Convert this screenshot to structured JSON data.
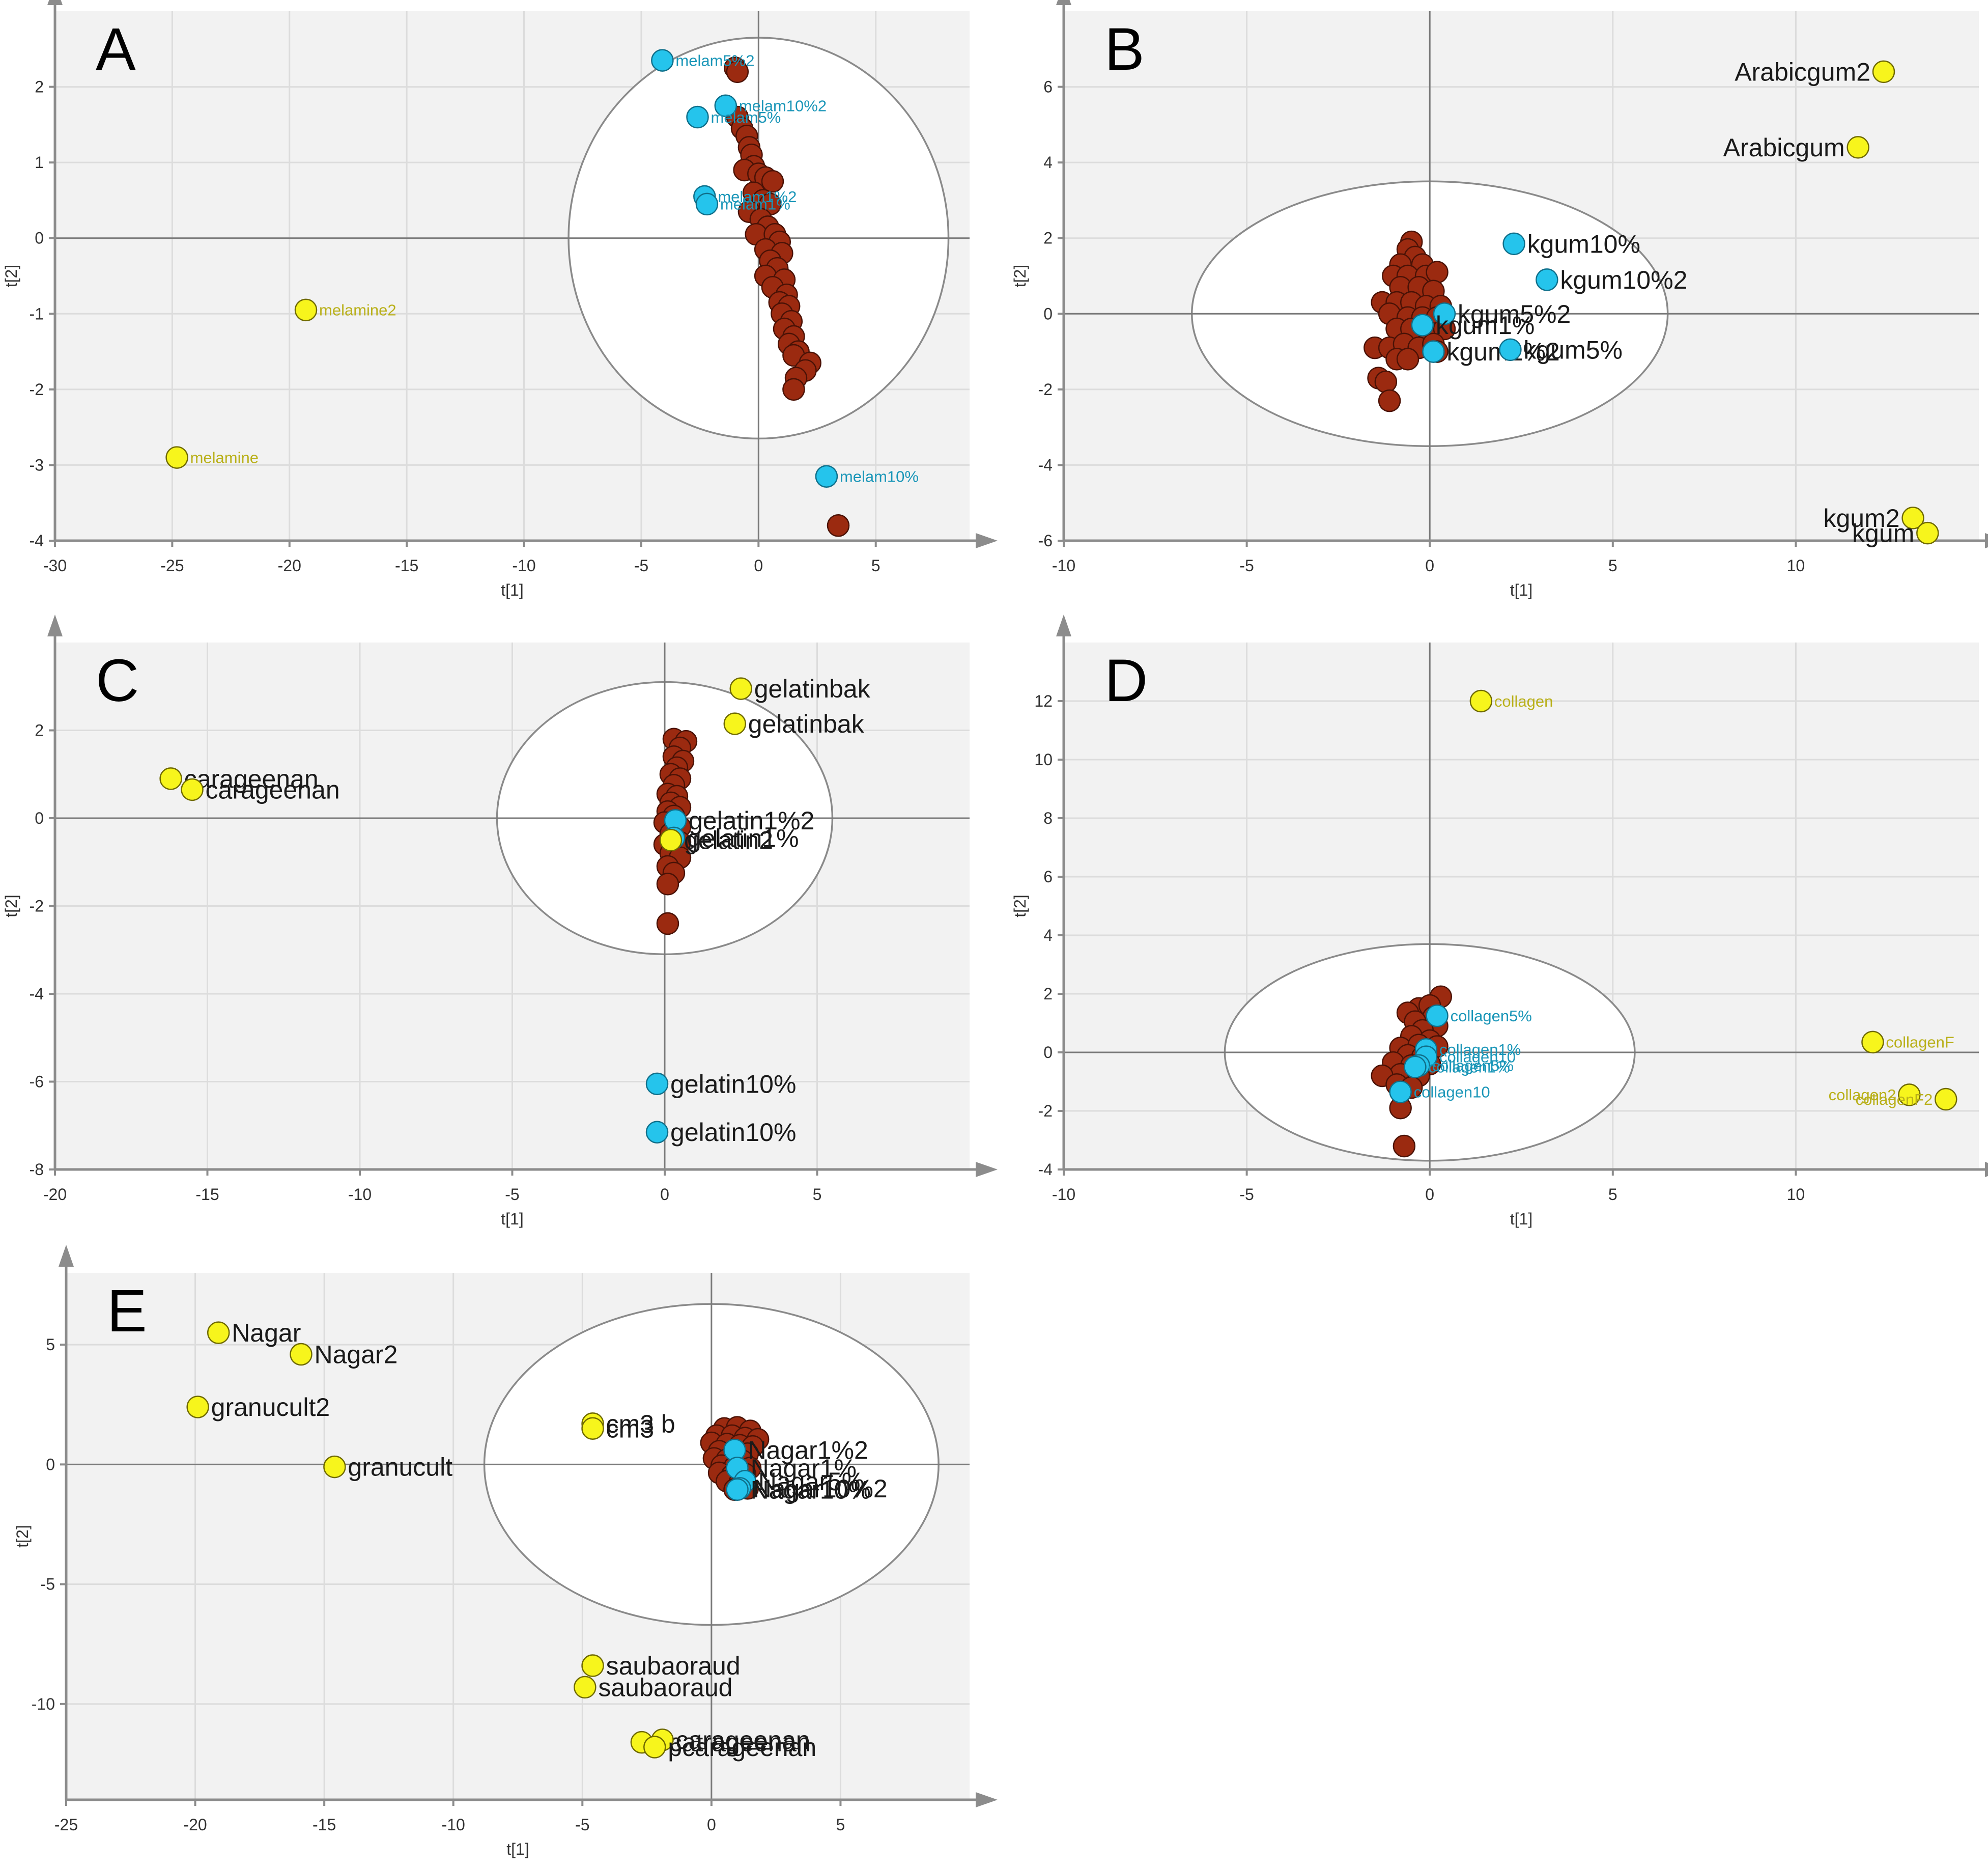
{
  "colors": {
    "plot_bg": "#f2f2f2",
    "grid": "#dcdcdc",
    "axis": "#8c8c8c",
    "observation": "#9b2a10",
    "blue_point": "#25c4ec",
    "yellow_point": "#f7f51c",
    "blue_label": "#1a96b8",
    "yellow_label": "#b9b01a",
    "black_label": "#1a1a1a"
  },
  "chart_data": [
    {
      "type": "scatter",
      "panel_label": "A",
      "xlabel": "t[1]",
      "ylabel": "t[2]",
      "xlim": [
        -30,
        9
      ],
      "ylim": [
        -4,
        3
      ],
      "xticks": [
        -30,
        -25,
        -20,
        -15,
        -10,
        -5,
        0,
        5
      ],
      "yticks": [
        -4,
        -3,
        -2,
        -1,
        0,
        1,
        2
      ],
      "ellipse": {
        "rx": 8.1,
        "ry": 2.65
      },
      "label_size": "small",
      "observations": [
        [
          -1.0,
          2.25
        ],
        [
          -0.9,
          2.2
        ],
        [
          -0.9,
          1.6
        ],
        [
          -0.7,
          1.45
        ],
        [
          -0.5,
          1.35
        ],
        [
          -0.4,
          1.2
        ],
        [
          -0.3,
          1.1
        ],
        [
          -0.2,
          0.95
        ],
        [
          -0.6,
          0.9
        ],
        [
          0.0,
          0.85
        ],
        [
          0.3,
          0.8
        ],
        [
          0.6,
          0.75
        ],
        [
          -0.2,
          0.6
        ],
        [
          0.2,
          0.5
        ],
        [
          0.5,
          0.45
        ],
        [
          -0.4,
          0.35
        ],
        [
          0.1,
          0.25
        ],
        [
          0.4,
          0.15
        ],
        [
          -0.1,
          0.05
        ],
        [
          0.7,
          0.05
        ],
        [
          0.9,
          -0.05
        ],
        [
          0.3,
          -0.15
        ],
        [
          1.0,
          -0.2
        ],
        [
          0.5,
          -0.3
        ],
        [
          0.8,
          -0.4
        ],
        [
          0.3,
          -0.5
        ],
        [
          1.1,
          -0.55
        ],
        [
          0.6,
          -0.65
        ],
        [
          1.2,
          -0.75
        ],
        [
          0.9,
          -0.85
        ],
        [
          1.3,
          -0.9
        ],
        [
          1.0,
          -1.0
        ],
        [
          1.4,
          -1.1
        ],
        [
          1.1,
          -1.2
        ],
        [
          1.5,
          -1.3
        ],
        [
          1.3,
          -1.4
        ],
        [
          1.7,
          -1.5
        ],
        [
          1.5,
          -1.55
        ],
        [
          2.2,
          -1.65
        ],
        [
          2.0,
          -1.75
        ],
        [
          1.6,
          -1.85
        ],
        [
          1.5,
          -2.0
        ],
        [
          3.4,
          -3.8
        ]
      ],
      "labeled_points": [
        {
          "x": -4.1,
          "y": 2.35,
          "label": "melam5%2",
          "color": "blue"
        },
        {
          "x": -1.4,
          "y": 1.75,
          "label": "melam10%2",
          "color": "blue"
        },
        {
          "x": -2.6,
          "y": 1.6,
          "label": "melam5%",
          "color": "blue"
        },
        {
          "x": -2.3,
          "y": 0.55,
          "label": "melam1%2",
          "color": "blue"
        },
        {
          "x": -2.2,
          "y": 0.45,
          "label": "melam1%",
          "color": "blue"
        },
        {
          "x": 2.9,
          "y": -3.15,
          "label": "melam10%",
          "color": "blue"
        },
        {
          "x": -19.3,
          "y": -0.95,
          "label": "melamine2",
          "color": "yellow"
        },
        {
          "x": -24.8,
          "y": -2.9,
          "label": "melamine",
          "color": "yellow"
        }
      ]
    },
    {
      "type": "scatter",
      "panel_label": "B",
      "xlabel": "t[1]",
      "ylabel": "t[2]",
      "xlim": [
        -10,
        15
      ],
      "ylim": [
        -6,
        8
      ],
      "xticks": [
        -10,
        -5,
        0,
        5,
        10
      ],
      "yticks": [
        -6,
        -4,
        -2,
        0,
        2,
        4,
        6
      ],
      "ellipse": {
        "rx": 6.5,
        "ry": 3.5
      },
      "label_size": "large",
      "observations": [
        [
          -0.5,
          1.9
        ],
        [
          -0.6,
          1.7
        ],
        [
          -0.4,
          1.5
        ],
        [
          -0.8,
          1.3
        ],
        [
          -0.2,
          1.3
        ],
        [
          -1.0,
          1.0
        ],
        [
          -0.6,
          1.0
        ],
        [
          -0.1,
          1.0
        ],
        [
          0.2,
          1.1
        ],
        [
          -0.8,
          0.7
        ],
        [
          -0.3,
          0.7
        ],
        [
          0.1,
          0.6
        ],
        [
          -1.3,
          0.3
        ],
        [
          -0.9,
          0.3
        ],
        [
          -0.5,
          0.3
        ],
        [
          -0.1,
          0.2
        ],
        [
          0.3,
          0.2
        ],
        [
          -1.1,
          0.0
        ],
        [
          -0.6,
          -0.1
        ],
        [
          -0.2,
          -0.1
        ],
        [
          0.2,
          -0.1
        ],
        [
          -0.9,
          -0.4
        ],
        [
          -0.5,
          -0.4
        ],
        [
          0.0,
          -0.5
        ],
        [
          0.4,
          -0.4
        ],
        [
          -1.5,
          -0.9
        ],
        [
          -1.1,
          -0.9
        ],
        [
          -0.7,
          -0.8
        ],
        [
          -0.3,
          -0.9
        ],
        [
          0.1,
          -0.8
        ],
        [
          0.2,
          -1.0
        ],
        [
          -0.9,
          -1.2
        ],
        [
          -0.6,
          -1.2
        ],
        [
          -1.4,
          -1.7
        ],
        [
          -1.2,
          -1.8
        ],
        [
          -1.1,
          -2.3
        ]
      ],
      "labeled_points": [
        {
          "x": 12.4,
          "y": 6.4,
          "label": "Arabicgum2",
          "color": "yellow",
          "label_side": "left"
        },
        {
          "x": 11.7,
          "y": 4.4,
          "label": "Arabicgum",
          "color": "yellow",
          "label_side": "left"
        },
        {
          "x": 13.2,
          "y": -5.4,
          "label": "kgum2",
          "color": "yellow",
          "label_side": "left"
        },
        {
          "x": 13.6,
          "y": -5.8,
          "label": "kgum",
          "color": "yellow",
          "label_side": "left"
        },
        {
          "x": 2.3,
          "y": 1.85,
          "label": "kgum10%",
          "color": "blue"
        },
        {
          "x": 3.2,
          "y": 0.9,
          "label": "kgum10%2",
          "color": "blue"
        },
        {
          "x": 0.4,
          "y": 0.0,
          "label": "kgum5%2",
          "color": "blue"
        },
        {
          "x": -0.2,
          "y": -0.3,
          "label": "kgum1%",
          "color": "blue"
        },
        {
          "x": 0.1,
          "y": -1.0,
          "label": "kgum1%2",
          "color": "blue"
        },
        {
          "x": 2.2,
          "y": -0.95,
          "label": "kgum5%",
          "color": "blue"
        }
      ]
    },
    {
      "type": "scatter",
      "panel_label": "C",
      "xlabel": "t[1]",
      "ylabel": "t[2]",
      "xlim": [
        -20,
        10
      ],
      "ylim": [
        -8,
        4
      ],
      "xticks": [
        -20,
        -15,
        -10,
        -5,
        0,
        5
      ],
      "yticks": [
        -8,
        -6,
        -4,
        -2,
        0,
        2
      ],
      "ellipse": {
        "rx": 5.5,
        "ry": 3.1
      },
      "label_size": "large",
      "observations": [
        [
          0.3,
          1.8
        ],
        [
          0.7,
          1.75
        ],
        [
          0.5,
          1.6
        ],
        [
          0.3,
          1.4
        ],
        [
          0.6,
          1.3
        ],
        [
          0.4,
          1.15
        ],
        [
          0.2,
          1.0
        ],
        [
          0.5,
          0.9
        ],
        [
          0.3,
          0.75
        ],
        [
          0.1,
          0.55
        ],
        [
          0.4,
          0.5
        ],
        [
          0.2,
          0.35
        ],
        [
          0.5,
          0.25
        ],
        [
          0.1,
          0.15
        ],
        [
          0.3,
          0.05
        ],
        [
          0.0,
          -0.1
        ],
        [
          0.5,
          -0.2
        ],
        [
          0.2,
          -0.35
        ],
        [
          0.0,
          -0.6
        ],
        [
          0.5,
          -0.55
        ],
        [
          0.2,
          -0.8
        ],
        [
          0.5,
          -0.9
        ],
        [
          0.1,
          -1.1
        ],
        [
          0.3,
          -1.25
        ],
        [
          0.1,
          -1.5
        ],
        [
          0.1,
          -2.4
        ]
      ],
      "labeled_points": [
        {
          "x": 2.5,
          "y": 2.95,
          "label": "gelatinbak",
          "color": "yellow"
        },
        {
          "x": 2.3,
          "y": 2.15,
          "label": "gelatinbak",
          "color": "yellow"
        },
        {
          "x": -16.2,
          "y": 0.9,
          "label": "carageenan",
          "color": "yellow"
        },
        {
          "x": -15.5,
          "y": 0.65,
          "label": "carageenan",
          "color": "yellow"
        },
        {
          "x": 0.35,
          "y": -0.05,
          "label": "gelatin1%2",
          "color": "blue"
        },
        {
          "x": 0.3,
          "y": -0.45,
          "label": "gelatin1%",
          "color": "blue"
        },
        {
          "x": 0.2,
          "y": -0.5,
          "label": "gelatin2",
          "color": "yellow"
        },
        {
          "x": -0.25,
          "y": -6.05,
          "label": "gelatin10%",
          "color": "blue"
        },
        {
          "x": -0.25,
          "y": -7.15,
          "label": "gelatin10%",
          "color": "blue"
        }
      ]
    },
    {
      "type": "scatter",
      "panel_label": "D",
      "xlabel": "t[1]",
      "ylabel": "t[2]",
      "xlim": [
        -10,
        15
      ],
      "ylim": [
        -4,
        14
      ],
      "xticks": [
        -10,
        -5,
        0,
        5,
        10
      ],
      "yticks": [
        -4,
        -2,
        0,
        2,
        4,
        6,
        8,
        10,
        12
      ],
      "ellipse": {
        "rx": 5.6,
        "ry": 3.7
      },
      "label_size": "small",
      "observations": [
        [
          0.3,
          1.9
        ],
        [
          -0.3,
          1.5
        ],
        [
          0.0,
          1.6
        ],
        [
          -0.6,
          1.35
        ],
        [
          0.1,
          1.2
        ],
        [
          -0.4,
          1.05
        ],
        [
          0.2,
          0.9
        ],
        [
          -0.2,
          0.75
        ],
        [
          -0.5,
          0.55
        ],
        [
          0.0,
          0.4
        ],
        [
          -0.8,
          0.15
        ],
        [
          -0.3,
          0.25
        ],
        [
          0.2,
          0.2
        ],
        [
          -0.6,
          -0.1
        ],
        [
          -0.2,
          -0.15
        ],
        [
          -1.0,
          -0.35
        ],
        [
          -0.5,
          -0.45
        ],
        [
          0.0,
          -0.4
        ],
        [
          -0.8,
          -0.75
        ],
        [
          -0.3,
          -0.8
        ],
        [
          -1.3,
          -0.8
        ],
        [
          -0.9,
          -1.1
        ],
        [
          -0.5,
          -1.2
        ],
        [
          -0.8,
          -1.9
        ],
        [
          -0.7,
          -3.2
        ]
      ],
      "labeled_points": [
        {
          "x": 1.4,
          "y": 12.0,
          "label": "collagen",
          "color": "yellow"
        },
        {
          "x": 12.1,
          "y": 0.35,
          "label": "collagenF",
          "color": "yellow"
        },
        {
          "x": 13.1,
          "y": -1.45,
          "label": "collagen2",
          "color": "yellow",
          "label_side": "left"
        },
        {
          "x": 14.1,
          "y": -1.6,
          "label": "collagenF2",
          "color": "yellow",
          "label_side": "left"
        },
        {
          "x": 0.2,
          "y": 1.25,
          "label": "collagen5%",
          "color": "blue"
        },
        {
          "x": -0.1,
          "y": 0.1,
          "label": "collagen1%",
          "color": "blue"
        },
        {
          "x": -0.1,
          "y": -0.15,
          "label": "collagen10",
          "color": "blue"
        },
        {
          "x": -0.3,
          "y": -0.45,
          "label": "collagen5%",
          "color": "blue"
        },
        {
          "x": -0.4,
          "y": -0.5,
          "label": "collagen1%",
          "color": "blue"
        },
        {
          "x": -0.8,
          "y": -1.35,
          "label": "collagen10",
          "color": "blue"
        }
      ]
    },
    {
      "type": "scatter",
      "panel_label": "E",
      "xlabel": "t[1]",
      "ylabel": "t[2]",
      "xlim": [
        -25,
        10
      ],
      "ylim": [
        -14,
        8
      ],
      "xticks": [
        -25,
        -20,
        -15,
        -10,
        -5,
        0,
        5
      ],
      "yticks": [
        -10,
        -5,
        0,
        5
      ],
      "ellipse": {
        "rx": 8.8,
        "ry": 6.7
      },
      "label_size": "large",
      "observations": [
        [
          0.5,
          1.5
        ],
        [
          1.0,
          1.55
        ],
        [
          1.5,
          1.4
        ],
        [
          0.2,
          1.2
        ],
        [
          0.8,
          1.2
        ],
        [
          1.3,
          1.1
        ],
        [
          1.8,
          1.05
        ],
        [
          0.0,
          0.9
        ],
        [
          0.6,
          0.85
        ],
        [
          1.1,
          0.8
        ],
        [
          1.6,
          0.75
        ],
        [
          0.3,
          0.55
        ],
        [
          0.9,
          0.5
        ],
        [
          1.4,
          0.45
        ],
        [
          0.1,
          0.25
        ],
        [
          0.6,
          0.2
        ],
        [
          1.2,
          0.15
        ],
        [
          0.4,
          -0.05
        ],
        [
          0.9,
          -0.1
        ],
        [
          1.5,
          -0.15
        ],
        [
          0.3,
          -0.35
        ],
        [
          0.8,
          -0.45
        ],
        [
          1.3,
          -0.4
        ],
        [
          0.6,
          -0.7
        ],
        [
          1.1,
          -0.75
        ],
        [
          0.9,
          -1.05
        ],
        [
          1.4,
          -1.0
        ]
      ],
      "labeled_points": [
        {
          "x": -19.1,
          "y": 5.5,
          "label": "Nagar",
          "color": "yellow"
        },
        {
          "x": -15.9,
          "y": 4.6,
          "label": "Nagar2",
          "color": "yellow"
        },
        {
          "x": -19.9,
          "y": 2.4,
          "label": "granucult2",
          "color": "yellow"
        },
        {
          "x": -14.6,
          "y": -0.1,
          "label": "granucult",
          "color": "yellow"
        },
        {
          "x": -4.6,
          "y": 1.7,
          "label": "cm3 b",
          "color": "yellow"
        },
        {
          "x": -4.6,
          "y": 1.5,
          "label": "cm3",
          "color": "yellow"
        },
        {
          "x": -4.6,
          "y": -8.4,
          "label": "saubaoraud",
          "color": "yellow"
        },
        {
          "x": -4.9,
          "y": -9.3,
          "label": "saubaoraud",
          "color": "yellow"
        },
        {
          "x": -2.7,
          "y": -11.6,
          "label": "pcatrageenan",
          "color": "yellow"
        },
        {
          "x": -1.9,
          "y": -11.5,
          "label": "carageenan",
          "color": "yellow"
        },
        {
          "x": -2.2,
          "y": -11.8,
          "label": "pcarageenan",
          "color": "yellow"
        },
        {
          "x": 0.9,
          "y": 0.6,
          "label": "Nagar1%2",
          "color": "blue"
        },
        {
          "x": 1.0,
          "y": -0.15,
          "label": "Nagar1%",
          "color": "blue"
        },
        {
          "x": 1.3,
          "y": -0.7,
          "label": "Nagar5%",
          "color": "blue"
        },
        {
          "x": 1.1,
          "y": -1.0,
          "label": "Nagar10%2",
          "color": "blue"
        },
        {
          "x": 1.0,
          "y": -1.05,
          "label": "Nagar10%",
          "color": "blue"
        }
      ]
    }
  ]
}
